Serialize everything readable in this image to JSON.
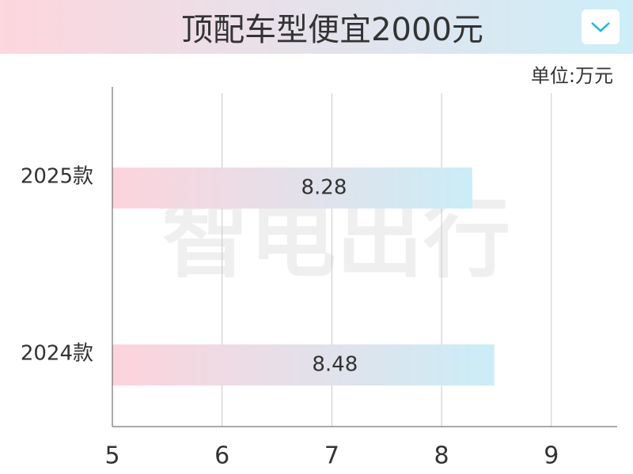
{
  "chart_data": {
    "type": "bar",
    "orientation": "horizontal",
    "title": "顶配车型便宜2000元",
    "unit_label": "单位:万元",
    "watermark": "智电出行",
    "categories": [
      "2025款",
      "2024款"
    ],
    "values": [
      8.28,
      8.48
    ],
    "color": [
      "#fdd3dc",
      "#cbedf7"
    ],
    "xlim": [
      5,
      9.6
    ],
    "xticks": [
      5,
      6,
      7,
      8,
      9
    ],
    "grid": true
  }
}
